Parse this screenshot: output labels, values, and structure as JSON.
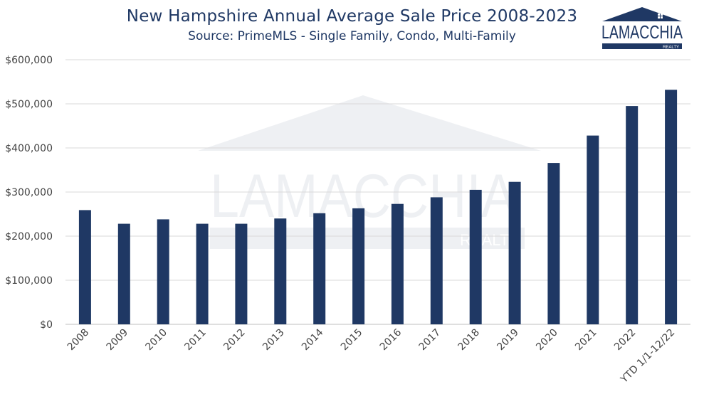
{
  "header": {
    "title": "New Hampshire Annual Average Sale Price 2008-2023",
    "subtitle": "Source: PrimeMLS - Single Family, Condo, Multi-Family"
  },
  "logo": {
    "name": "LAMACCHIA",
    "tagline": "REALTY",
    "color": "#1f3864"
  },
  "watermark": {
    "name": "LAMACCHIA",
    "tagline": "REALTY"
  },
  "chart_data": {
    "type": "bar",
    "title": "New Hampshire Annual Average Sale Price 2008-2023",
    "subtitle": "Source: PrimeMLS - Single Family, Condo, Multi-Family",
    "categories": [
      "2008",
      "2009",
      "2010",
      "2011",
      "2012",
      "2013",
      "2014",
      "2015",
      "2016",
      "2017",
      "2018",
      "2019",
      "2020",
      "2021",
      "2022",
      "YTD 1/1-12/22"
    ],
    "values": [
      259000,
      228000,
      238000,
      228000,
      228000,
      240000,
      252000,
      263000,
      273000,
      288000,
      305000,
      323000,
      366000,
      428000,
      495000,
      532000
    ],
    "ylim": [
      0,
      600000
    ],
    "yticks": [
      0,
      100000,
      200000,
      300000,
      400000,
      500000,
      600000
    ],
    "ytick_labels": [
      "$0",
      "$100,000",
      "$200,000",
      "$300,000",
      "$400,000",
      "$500,000",
      "$600,000"
    ],
    "xlabel": "",
    "ylabel": "",
    "bar_color": "#1f3864",
    "grid": true,
    "legend": false
  }
}
